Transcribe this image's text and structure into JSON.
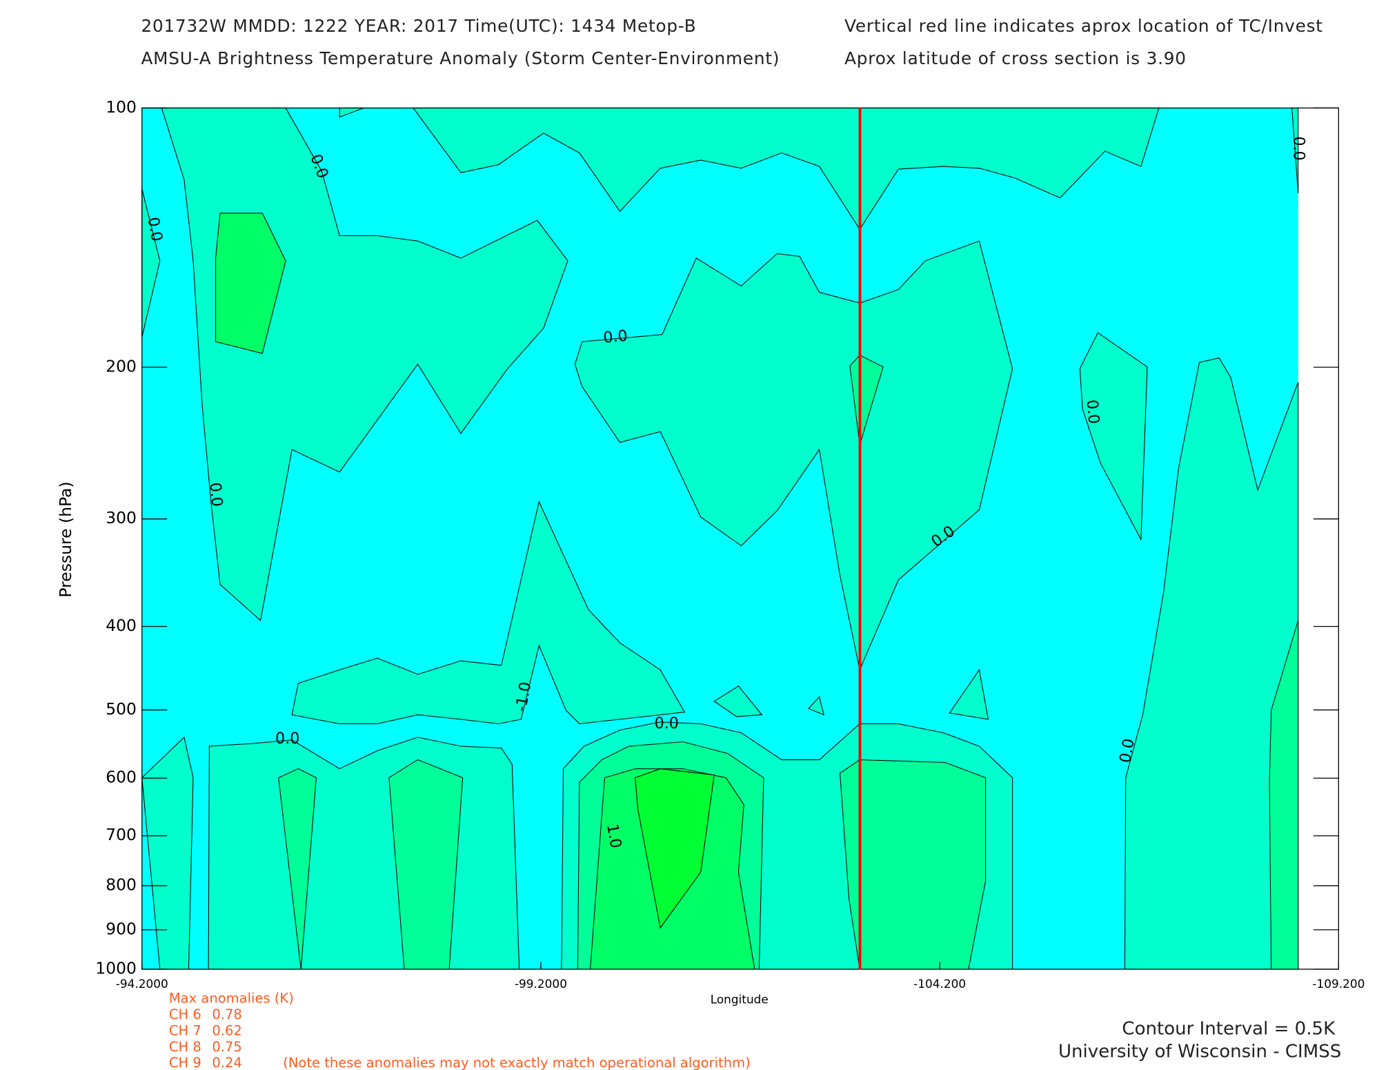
{
  "chart_data": {
    "type": "contour",
    "title": "201732W  MMDD: 1222 YEAR: 2017 Time(UTC): 1434 Metop-B",
    "subtitle": "AMSU-A Brightness Temperature Anomaly (Storm Center-Environment)",
    "annotations": [
      "Vertical red line indicates aprox location of TC/Invest",
      "Aprox latitude of cross section is 3.90"
    ],
    "ylabel": "Pressure (hPa)",
    "xlabel": "Longitude",
    "yscale": "log",
    "ylim": [
      1000,
      100
    ],
    "yticks": [
      100,
      200,
      300,
      400,
      500,
      600,
      700,
      800,
      900,
      1000
    ],
    "xlim": [
      -94.2,
      -109.2
    ],
    "xticks": [
      {
        "value": -94.2,
        "label": "-94.2000"
      },
      {
        "value": -99.2,
        "label": "-99.2000"
      },
      {
        "value": -104.2,
        "label": "-104.200"
      },
      {
        "value": -109.2,
        "label": "-109.200"
      }
    ],
    "tc_line": {
      "x": -103.2,
      "color": "#ff0000"
    },
    "contour_labels": [
      "0.0",
      "0.0",
      "0.0",
      "0.0",
      "0.0",
      "0.0",
      "0.0",
      "0.0",
      "0.0",
      "0.0",
      "-1.0",
      "1.0"
    ],
    "max_anomalies": {
      "title": "Max anomalies (K)",
      "channels": [
        "CH 6",
        "CH 7",
        "CH 8",
        "CH 9"
      ],
      "values": [
        0.78,
        0.62,
        0.75,
        0.24
      ],
      "note": "(Note these anomalies may not exactly match operational algorithm)"
    },
    "contour_interval": "Contour Interval = 0.5K",
    "credit": "University of Wisconsin - CIMSS"
  }
}
